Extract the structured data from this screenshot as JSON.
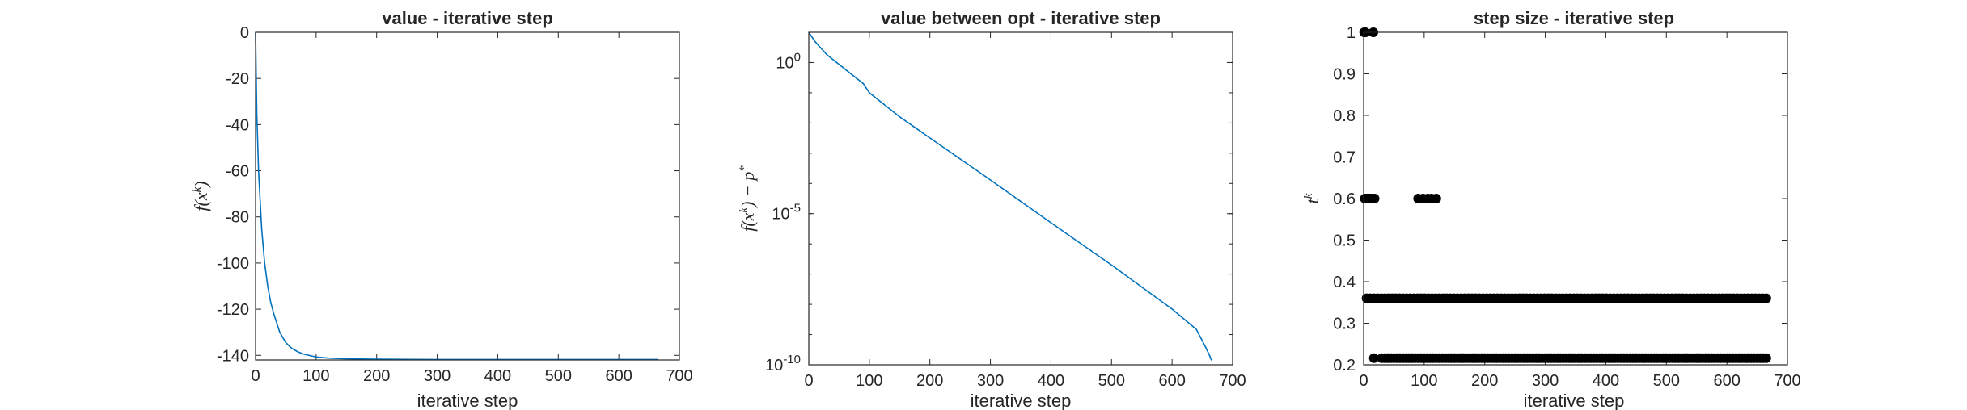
{
  "chart_data": [
    {
      "type": "line",
      "title": "value  - iterative step",
      "xlabel": "iterative step",
      "ylabel": "f(x^k)",
      "xlim": [
        0,
        700
      ],
      "ylim": [
        -142,
        0
      ],
      "xticks": [
        0,
        100,
        200,
        300,
        400,
        500,
        600,
        700
      ],
      "yticks": [
        0,
        -20,
        -40,
        -60,
        -80,
        -100,
        -120,
        -140
      ],
      "line_color": "#0072BD",
      "series": [
        {
          "x": [
            0,
            2,
            5,
            10,
            15,
            20,
            25,
            30,
            40,
            50,
            60,
            70,
            80,
            100,
            120,
            150,
            200,
            300,
            400,
            500,
            600,
            665
          ],
          "y": [
            0,
            -35,
            -60,
            -85,
            -100,
            -110,
            -117,
            -122,
            -130,
            -134.5,
            -137,
            -138.5,
            -139.5,
            -140.7,
            -141.2,
            -141.5,
            -141.7,
            -141.8,
            -141.8,
            -141.8,
            -141.8,
            -141.8
          ]
        }
      ]
    },
    {
      "type": "line",
      "title": "value between opt - iterative step",
      "xlabel": "iterative step",
      "ylabel": "f(x^k) − p*",
      "xlim": [
        0,
        700
      ],
      "ylim": [
        1e-10,
        10
      ],
      "yscale": "log",
      "xticks": [
        0,
        100,
        200,
        300,
        400,
        500,
        600,
        700
      ],
      "ytick_labels": [
        "10^0",
        "10^-5",
        "10^-10"
      ],
      "line_color": "#0072BD",
      "series": [
        {
          "x": [
            0,
            10,
            30,
            60,
            90,
            100,
            150,
            200,
            300,
            400,
            500,
            600,
            640,
            655,
            662,
            665
          ],
          "y": [
            14.0,
            5.0,
            1.8,
            0.6,
            0.2,
            0.1,
            0.016,
            0.0032,
            0.00013,
            5e-06,
            2e-07,
            7e-09,
            1.5e-09,
            4e-10,
            2e-10,
            1.4e-10
          ]
        }
      ]
    },
    {
      "type": "scatter",
      "title": "step size - iterative step",
      "xlabel": "iterative step",
      "ylabel": "t^k",
      "xlim": [
        0,
        700
      ],
      "ylim": [
        0.2,
        1
      ],
      "xticks": [
        0,
        100,
        200,
        300,
        400,
        500,
        600,
        700
      ],
      "yticks": [
        1,
        0.9,
        0.8,
        0.7,
        0.6,
        0.5,
        0.4,
        0.3,
        0.2
      ],
      "marker_color": "#000000",
      "series": [
        {
          "points": [
            [
              1,
              1
            ],
            [
              3,
              1
            ],
            [
              16,
              1
            ],
            [
              2,
              0.6
            ],
            [
              4,
              0.6
            ],
            [
              6,
              0.6
            ],
            [
              8,
              0.6
            ],
            [
              10,
              0.6
            ],
            [
              12,
              0.6
            ],
            [
              14,
              0.6
            ],
            [
              18,
              0.6
            ],
            [
              90,
              0.6
            ],
            [
              98,
              0.6
            ],
            [
              106,
              0.6
            ],
            [
              112,
              0.6
            ],
            [
              120,
              0.6
            ],
            [
              17,
              0.216
            ]
          ],
          "band_0_36": {
            "from": 5,
            "to": 665,
            "step": 6,
            "value": 0.36
          },
          "band_0_216": {
            "from": 30,
            "to": 665,
            "step": 5,
            "value": 0.216
          }
        }
      ]
    }
  ]
}
